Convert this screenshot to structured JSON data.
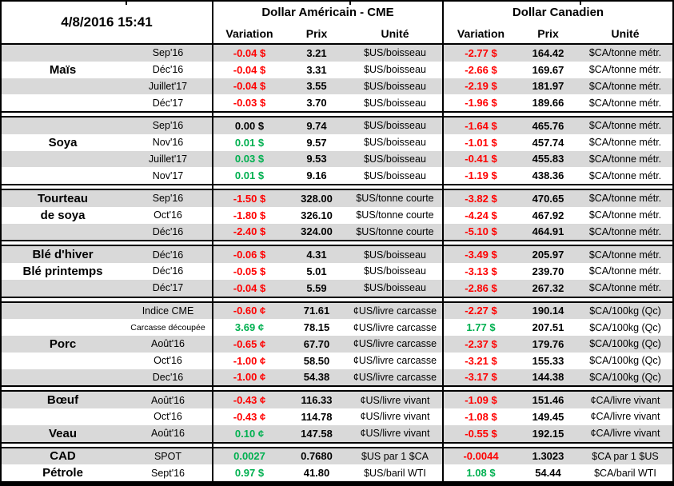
{
  "meta": {
    "timestamp": "4/8/2016 15:41"
  },
  "header": {
    "us_title": "Dollar Américain - CME",
    "ca_title": "Dollar Canadien",
    "col_variation": "Variation",
    "col_prix": "Prix",
    "col_unite": "Unité"
  },
  "colors": {
    "negative": "#FF0000",
    "positive": "#00B050",
    "zero": "#000000",
    "band": "#D9D9D9",
    "background": "#FFFFFF",
    "border": "#000000"
  },
  "groups": [
    {
      "name": "Maïs",
      "slug": "mais",
      "rows": [
        {
          "commodity": "",
          "contract": "Sep'16",
          "us_variation": "-0.04 $",
          "us_prix": "3.21",
          "us_unite": "$US/boisseau",
          "ca_variation": "-2.77 $",
          "ca_prix": "164.42",
          "ca_unite": "$CA/tonne métr."
        },
        {
          "commodity": "Maïs",
          "contract": "Déc'16",
          "us_variation": "-0.04 $",
          "us_prix": "3.31",
          "us_unite": "$US/boisseau",
          "ca_variation": "-2.66 $",
          "ca_prix": "169.67",
          "ca_unite": "$CA/tonne métr."
        },
        {
          "commodity": "",
          "contract": "Juillet'17",
          "us_variation": "-0.04 $",
          "us_prix": "3.55",
          "us_unite": "$US/boisseau",
          "ca_variation": "-2.19 $",
          "ca_prix": "181.97",
          "ca_unite": "$CA/tonne métr."
        },
        {
          "commodity": "",
          "contract": "Déc'17",
          "us_variation": "-0.03 $",
          "us_prix": "3.70",
          "us_unite": "$US/boisseau",
          "ca_variation": "-1.96 $",
          "ca_prix": "189.66",
          "ca_unite": "$CA/tonne métr."
        }
      ]
    },
    {
      "name": "Soya",
      "slug": "soya",
      "rows": [
        {
          "commodity": "",
          "contract": "Sep'16",
          "us_variation": "0.00 $",
          "us_prix": "9.74",
          "us_unite": "$US/boisseau",
          "ca_variation": "-1.64 $",
          "ca_prix": "465.76",
          "ca_unite": "$CA/tonne métr."
        },
        {
          "commodity": "Soya",
          "contract": "Nov'16",
          "us_variation": "0.01 $",
          "us_prix": "9.57",
          "us_unite": "$US/boisseau",
          "ca_variation": "-1.01 $",
          "ca_prix": "457.74",
          "ca_unite": "$CA/tonne métr."
        },
        {
          "commodity": "",
          "contract": "Juillet'17",
          "us_variation": "0.03 $",
          "us_prix": "9.53",
          "us_unite": "$US/boisseau",
          "ca_variation": "-0.41 $",
          "ca_prix": "455.83",
          "ca_unite": "$CA/tonne métr."
        },
        {
          "commodity": "",
          "contract": "Nov'17",
          "us_variation": "0.01 $",
          "us_prix": "9.16",
          "us_unite": "$US/boisseau",
          "ca_variation": "-1.19 $",
          "ca_prix": "438.36",
          "ca_unite": "$CA/tonne métr."
        }
      ]
    },
    {
      "name": "Tourteau de soya",
      "slug": "tourteau-de-soya",
      "rows": [
        {
          "commodity": "Tourteau",
          "contract": "Sep'16",
          "us_variation": "-1.50 $",
          "us_prix": "328.00",
          "us_unite": "$US/tonne courte",
          "ca_variation": "-3.82 $",
          "ca_prix": "470.65",
          "ca_unite": "$CA/tonne métr."
        },
        {
          "commodity": "de soya",
          "contract": "Oct'16",
          "us_variation": "-1.80 $",
          "us_prix": "326.10",
          "us_unite": "$US/tonne courte",
          "ca_variation": "-4.24 $",
          "ca_prix": "467.92",
          "ca_unite": "$CA/tonne métr."
        },
        {
          "commodity": "",
          "contract": "Déc'16",
          "us_variation": "-2.40 $",
          "us_prix": "324.00",
          "us_unite": "$US/tonne courte",
          "ca_variation": "-5.10 $",
          "ca_prix": "464.91",
          "ca_unite": "$CA/tonne métr."
        }
      ]
    },
    {
      "name": "Blé",
      "slug": "ble",
      "rows": [
        {
          "commodity": "Blé d'hiver",
          "contract": "Déc'16",
          "us_variation": "-0.06 $",
          "us_prix": "4.31",
          "us_unite": "$US/boisseau",
          "ca_variation": "-3.49 $",
          "ca_prix": "205.97",
          "ca_unite": "$CA/tonne métr."
        },
        {
          "commodity": "Blé printemps",
          "contract": "Déc'16",
          "us_variation": "-0.05 $",
          "us_prix": "5.01",
          "us_unite": "$US/boisseau",
          "ca_variation": "-3.13 $",
          "ca_prix": "239.70",
          "ca_unite": "$CA/tonne métr."
        },
        {
          "commodity": "",
          "contract": "Déc'17",
          "us_variation": "-0.04 $",
          "us_prix": "5.59",
          "us_unite": "$US/boisseau",
          "ca_variation": "-2.86 $",
          "ca_prix": "267.32",
          "ca_unite": "$CA/tonne métr."
        }
      ]
    },
    {
      "name": "Porc",
      "slug": "porc",
      "rows": [
        {
          "commodity": "",
          "contract": "Indice CME",
          "us_variation": "-0.60 ¢",
          "us_prix": "71.61",
          "us_unite": "¢US/livre carcasse",
          "ca_variation": "-2.27 $",
          "ca_prix": "190.14",
          "ca_unite": "$CA/100kg (Qc)"
        },
        {
          "commodity": "",
          "contract": "Carcasse découpée",
          "small": true,
          "us_variation": "3.69 ¢",
          "us_prix": "78.15",
          "us_unite": "¢US/livre carcasse",
          "ca_variation": "1.77 $",
          "ca_prix": "207.51",
          "ca_unite": "$CA/100kg (Qc)"
        },
        {
          "commodity": "Porc",
          "contract": "Août'16",
          "us_variation": "-0.65 ¢",
          "us_prix": "67.70",
          "us_unite": "¢US/livre carcasse",
          "ca_variation": "-2.37 $",
          "ca_prix": "179.76",
          "ca_unite": "$CA/100kg (Qc)"
        },
        {
          "commodity": "",
          "contract": "Oct'16",
          "us_variation": "-1.00 ¢",
          "us_prix": "58.50",
          "us_unite": "¢US/livre carcasse",
          "ca_variation": "-3.21 $",
          "ca_prix": "155.33",
          "ca_unite": "$CA/100kg (Qc)"
        },
        {
          "commodity": "",
          "contract": "Dec'16",
          "us_variation": "-1.00 ¢",
          "us_prix": "54.38",
          "us_unite": "¢US/livre carcasse",
          "ca_variation": "-3.17 $",
          "ca_prix": "144.38",
          "ca_unite": "$CA/100kg (Qc)"
        }
      ]
    },
    {
      "name": "Bœuf / Veau",
      "slug": "boeuf-veau",
      "rows": [
        {
          "commodity": "Bœuf",
          "contract": "Août'16",
          "us_variation": "-0.43 ¢",
          "us_prix": "116.33",
          "us_unite": "¢US/livre vivant",
          "ca_variation": "-1.09 $",
          "ca_prix": "151.46",
          "ca_unite": "¢CA/livre vivant"
        },
        {
          "commodity": "",
          "contract": "Oct'16",
          "us_variation": "-0.43 ¢",
          "us_prix": "114.78",
          "us_unite": "¢US/livre vivant",
          "ca_variation": "-1.08 $",
          "ca_prix": "149.45",
          "ca_unite": "¢CA/livre vivant"
        },
        {
          "commodity": "Veau",
          "contract": "Août'16",
          "us_variation": "0.10 ¢",
          "us_prix": "147.58",
          "us_unite": "¢US/livre vivant",
          "ca_variation": "-0.55 $",
          "ca_prix": "192.15",
          "ca_unite": "¢CA/livre vivant"
        }
      ]
    },
    {
      "name": "CAD / Pétrole",
      "slug": "cad-petrole",
      "rows": [
        {
          "commodity": "CAD",
          "contract": "SPOT",
          "us_variation": "0.0027",
          "us_prix": "0.7680",
          "us_unite": "$US par 1 $CA",
          "ca_variation": "-0.0044",
          "ca_prix": "1.3023",
          "ca_unite": "$CA par 1 $US"
        },
        {
          "commodity": "Pétrole",
          "contract": "Sept'16",
          "us_variation": "0.97 $",
          "us_prix": "41.80",
          "us_unite": "$US/baril WTI",
          "ca_variation": "1.08 $",
          "ca_prix": "54.44",
          "ca_unite": "$CA/baril WTI"
        }
      ]
    }
  ]
}
